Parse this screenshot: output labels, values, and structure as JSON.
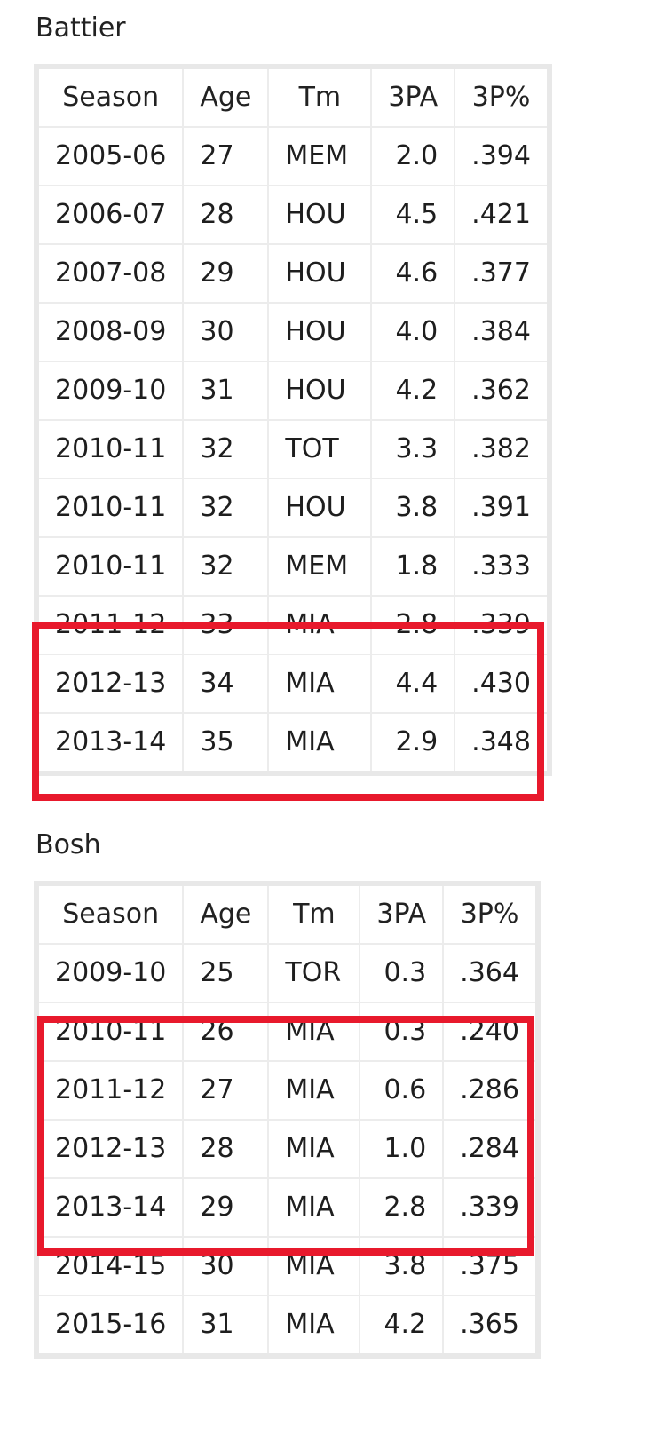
{
  "battier": {
    "title": "Battier",
    "headers": [
      "Season",
      "Age",
      "Tm",
      "3PA",
      "3P%"
    ],
    "rows": [
      [
        "2005-06",
        "27",
        "MEM",
        "2.0",
        ".394"
      ],
      [
        "2006-07",
        "28",
        "HOU",
        "4.5",
        ".421"
      ],
      [
        "2007-08",
        "29",
        "HOU",
        "4.6",
        ".377"
      ],
      [
        "2008-09",
        "30",
        "HOU",
        "4.0",
        ".384"
      ],
      [
        "2009-10",
        "31",
        "HOU",
        "4.2",
        ".362"
      ],
      [
        "2010-11",
        "32",
        "TOT",
        "3.3",
        ".382"
      ],
      [
        "2010-11",
        "32",
        "HOU",
        "3.8",
        ".391"
      ],
      [
        "2010-11",
        "32",
        "MEM",
        "1.8",
        ".333"
      ],
      [
        "2011-12",
        "33",
        "MIA",
        "2.8",
        ".339"
      ],
      [
        "2012-13",
        "34",
        "MIA",
        "4.4",
        ".430"
      ],
      [
        "2013-14",
        "35",
        "MIA",
        "2.9",
        ".348"
      ]
    ],
    "highlight_rows": [
      8,
      10
    ]
  },
  "bosh": {
    "title": "Bosh",
    "headers": [
      "Season",
      "Age",
      "Tm",
      "3PA",
      "3P%"
    ],
    "rows": [
      [
        "2009-10",
        "25",
        "TOR",
        "0.3",
        ".364"
      ],
      [
        "2010-11",
        "26",
        "MIA",
        "0.3",
        ".240"
      ],
      [
        "2011-12",
        "27",
        "MIA",
        "0.6",
        ".286"
      ],
      [
        "2012-13",
        "28",
        "MIA",
        "1.0",
        ".284"
      ],
      [
        "2013-14",
        "29",
        "MIA",
        "2.8",
        ".339"
      ],
      [
        "2014-15",
        "30",
        "MIA",
        "3.8",
        ".375"
      ],
      [
        "2015-16",
        "31",
        "MIA",
        "4.2",
        ".365"
      ]
    ],
    "highlight_rows": [
      1,
      4
    ]
  },
  "highlight_color": "#e8192c"
}
